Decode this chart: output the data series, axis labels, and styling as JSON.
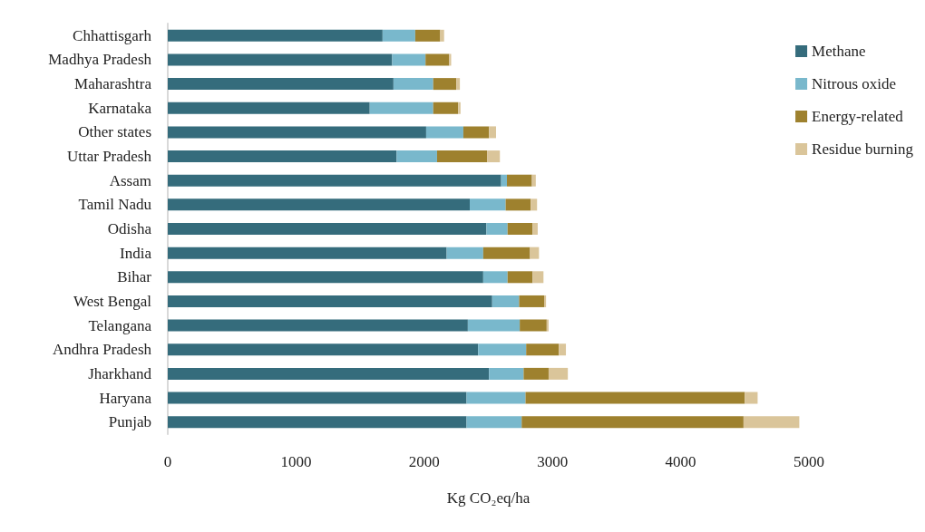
{
  "chart_data": {
    "type": "bar",
    "orientation": "horizontal",
    "stacked": true,
    "xlabel": "Kg CO₂eq/ha",
    "categories": [
      "Chhattisgarh",
      "Madhya Pradesh",
      "Maharashtra",
      "Karnataka",
      "Other states",
      "Uttar Pradesh",
      "Assam",
      "Tamil Nadu",
      "Odisha",
      "India",
      "Bihar",
      "West Bengal",
      "Telangana",
      "Andhra Pradesh",
      "Jharkhand",
      "Haryana",
      "Punjab"
    ],
    "series": [
      {
        "name": "Methane",
        "color": "#356c7c",
        "values": [
          1675,
          1750,
          1760,
          1575,
          2015,
          1785,
          2600,
          2355,
          2485,
          2175,
          2460,
          2530,
          2340,
          2420,
          2505,
          2330,
          2330
        ]
      },
      {
        "name": "Nitrous oxide",
        "color": "#79b8cc",
        "values": [
          255,
          260,
          310,
          495,
          290,
          315,
          45,
          280,
          165,
          285,
          190,
          210,
          405,
          375,
          270,
          460,
          430
        ]
      },
      {
        "name": "Energy-related",
        "color": "#9e812e",
        "values": [
          195,
          185,
          180,
          195,
          200,
          390,
          195,
          195,
          195,
          365,
          195,
          195,
          210,
          255,
          195,
          1710,
          1730
        ]
      },
      {
        "name": "Residue burning",
        "color": "#dac59a",
        "values": [
          30,
          15,
          28,
          18,
          55,
          100,
          30,
          50,
          40,
          70,
          85,
          15,
          15,
          55,
          150,
          100,
          435
        ]
      }
    ],
    "xlim": [
      0,
      5000
    ],
    "xticks": [
      0,
      1000,
      2000,
      3000,
      4000,
      5000
    ],
    "grid": false,
    "legend": "top right"
  }
}
